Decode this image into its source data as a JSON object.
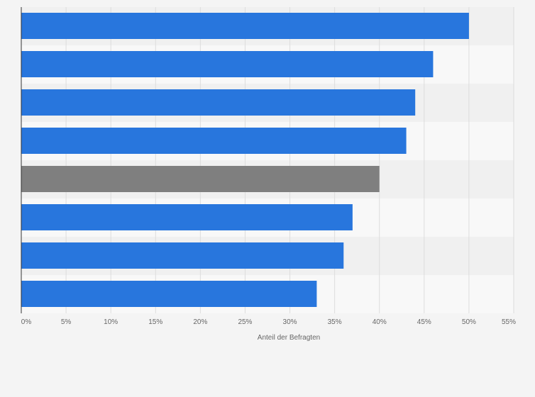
{
  "chart_data": {
    "type": "bar",
    "orientation": "horizontal",
    "title": "",
    "xlabel": "Anteil der Befragten",
    "ylabel": "",
    "xlim": [
      0,
      55
    ],
    "x_ticks": [
      0,
      5,
      10,
      15,
      20,
      25,
      30,
      35,
      40,
      45,
      50,
      55
    ],
    "x_tick_labels": [
      "0%",
      "5%",
      "10%",
      "15%",
      "20%",
      "25%",
      "30%",
      "35%",
      "40%",
      "45%",
      "50%",
      "55%"
    ],
    "categories": [
      "",
      "",
      "",
      "",
      "",
      "",
      "",
      ""
    ],
    "values": [
      50,
      46,
      44,
      43,
      40,
      37,
      36,
      33
    ],
    "unit": "%",
    "grid": true,
    "legend": "none",
    "colors": {
      "bar": "#2876dd",
      "highlight": "#7f7f7f",
      "highlight_index": 4,
      "grid": "#dddddd",
      "band_light": "#f8f8f8",
      "band_dark": "#f0f0f0",
      "axis": "#333333"
    }
  }
}
